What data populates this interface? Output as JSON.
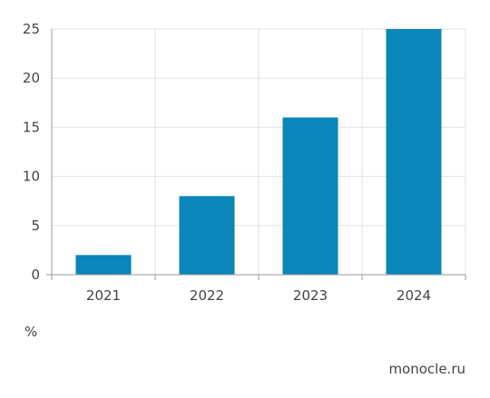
{
  "chart_data": {
    "type": "bar",
    "categories": [
      "2021",
      "2022",
      "2023",
      "2024"
    ],
    "values": [
      2,
      8,
      16,
      25
    ],
    "ylim": [
      0,
      25
    ],
    "yticks": [
      0,
      5,
      10,
      15,
      20,
      25
    ],
    "grid": true,
    "bar_color": "#0a86b8",
    "unit_label": "%",
    "title": "",
    "xlabel": "",
    "ylabel": ""
  },
  "source": "monocle.ru"
}
